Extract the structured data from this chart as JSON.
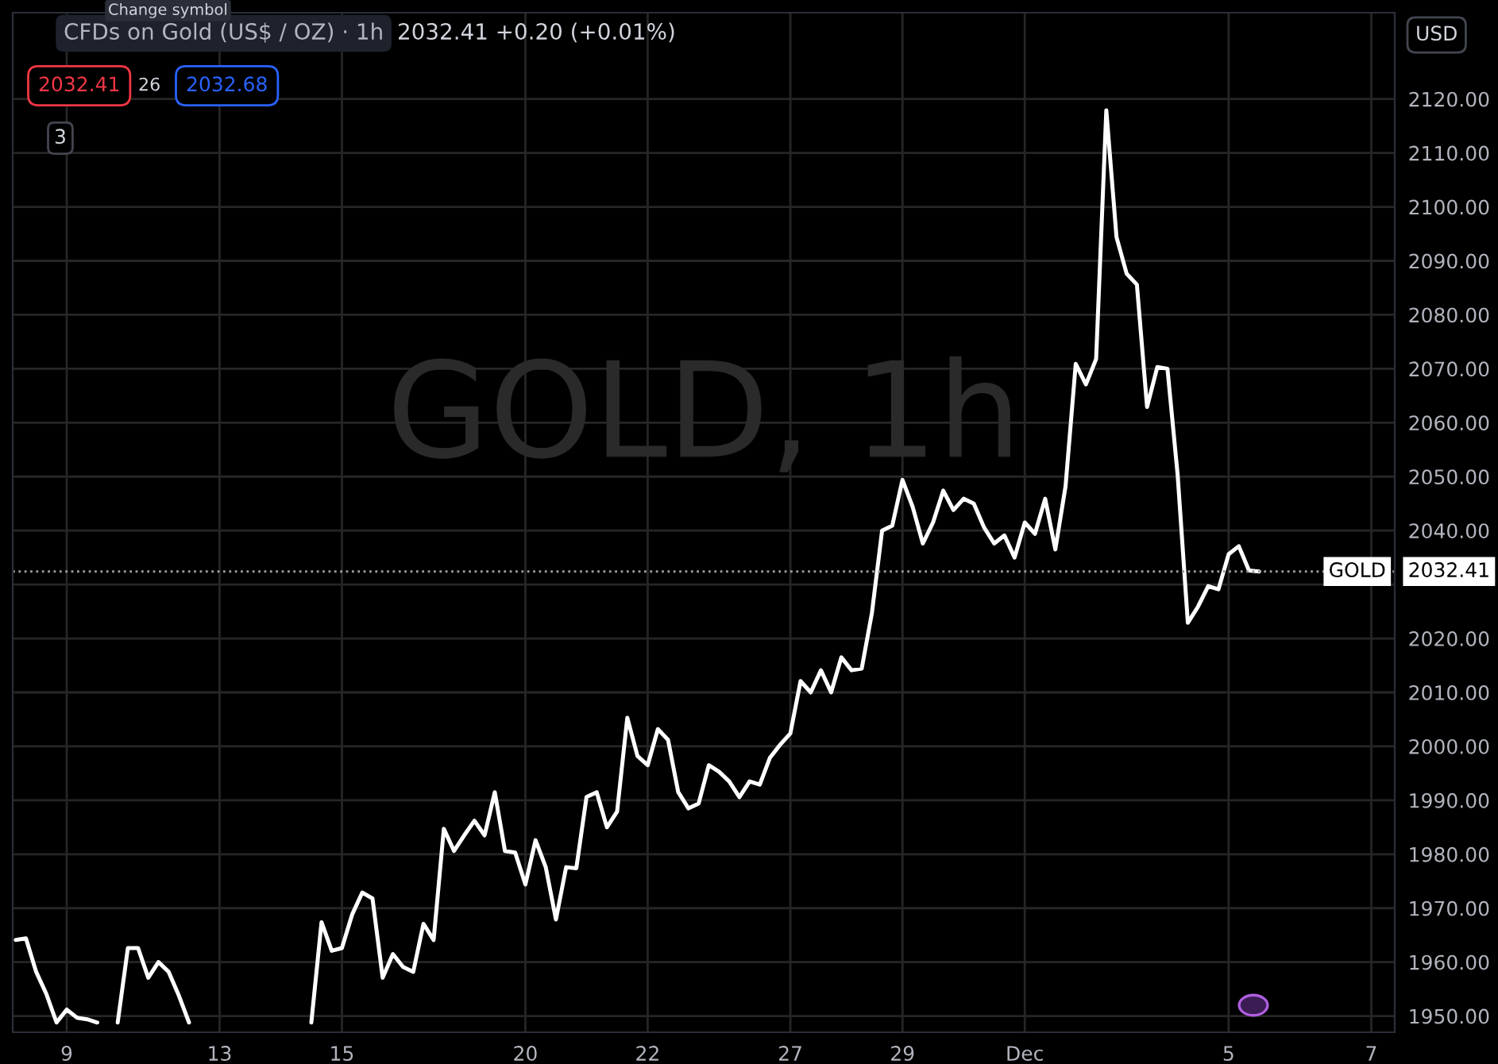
{
  "chart_data": {
    "type": "line",
    "title": "CFDs on Gold (US$ / OZ) · 1h",
    "annotations": [
      "Change symbol",
      "2032.41 +0.20 (+0.01%)",
      "2032.41",
      "26",
      "2032.68",
      "3",
      "USD",
      "GOLD, 1h"
    ],
    "categories": [
      null,
      null,
      null,
      null,
      null,
      "9",
      null,
      null,
      null,
      null,
      null,
      null,
      null,
      null,
      null,
      null,
      null,
      null,
      null,
      null,
      "13",
      null,
      null,
      null,
      null,
      null,
      null,
      null,
      null,
      null,
      null,
      null,
      "15",
      null,
      null,
      null,
      null,
      null,
      null,
      null,
      null,
      null,
      null,
      null,
      null,
      null,
      null,
      null,
      null,
      null,
      "20",
      null,
      null,
      null,
      null,
      null,
      null,
      null,
      null,
      null,
      null,
      null,
      "22",
      null,
      null,
      null,
      null,
      null,
      null,
      null,
      null,
      null,
      null,
      null,
      null,
      null,
      "27",
      null,
      null,
      null,
      null,
      null,
      null,
      null,
      null,
      null,
      null,
      "29",
      null,
      null,
      null,
      null,
      null,
      null,
      null,
      null,
      null,
      null,
      null,
      "Dec",
      null,
      null,
      null,
      null,
      null,
      null,
      null,
      null,
      null,
      null,
      null,
      null,
      null,
      null,
      null,
      null,
      null,
      null,
      null,
      "5",
      null,
      null,
      null,
      null,
      null,
      null,
      null,
      null,
      null,
      null,
      null,
      null,
      null,
      "7",
      null,
      null
    ],
    "series": [
      {
        "color": "#ffffff",
        "values": [
          1964.1,
          1964.4,
          1958.2,
          1954.1,
          1948.8,
          1951.2,
          1949.7,
          1949.4,
          1948.8,
          null,
          1948.8,
          1962.6,
          1962.6,
          1957.1,
          1960.0,
          1958.2,
          1953.8,
          1948.8,
          null,
          null,
          null,
          null,
          null,
          null,
          null,
          null,
          null,
          null,
          null,
          1948.8,
          1967.4,
          1962.1,
          1962.6,
          1968.8,
          1972.9,
          1971.8,
          1957.1,
          1961.5,
          1959.1,
          1958.2,
          1967.1,
          1964.1,
          1984.7,
          1980.6,
          1983.5,
          1986.2,
          1983.5,
          1991.5,
          1980.6,
          1980.3,
          1974.4,
          1982.6,
          1977.6,
          1967.9,
          1977.6,
          1977.4,
          1990.6,
          1991.5,
          1985.0,
          1987.9,
          2005.3,
          1998.2,
          1996.5,
          2003.2,
          2001.2,
          1991.5,
          1988.5,
          1989.4,
          1996.5,
          1995.3,
          1993.5,
          1990.6,
          1993.5,
          1992.9,
          1997.9,
          2000.3,
          2002.4,
          2012.1,
          2010.0,
          2014.1,
          2010.0,
          2016.5,
          2014.1,
          2014.4,
          2024.7,
          2040.0,
          2040.9,
          2049.4,
          2044.4,
          2037.6,
          2041.5,
          2047.4,
          2043.8,
          2045.9,
          2045.0,
          2040.6,
          2037.6,
          2039.1,
          2035.0,
          2041.5,
          2039.4,
          2045.9,
          2036.5,
          2048.2,
          2070.9,
          2067.1,
          2071.8,
          2117.9,
          2094.4,
          2087.6,
          2085.6,
          2062.9,
          2070.3,
          2070.0,
          2050.3,
          2022.9,
          2025.9,
          2029.7,
          2029.1,
          2035.6,
          2037.1,
          2032.6,
          2032.4,
          null,
          null,
          null,
          null,
          null,
          null,
          null,
          null,
          null,
          null,
          null,
          null,
          null
        ]
      }
    ],
    "ylim": [
      1947,
      2136
    ],
    "yticks": [
      {
        "value": 1950,
        "label": "1950.00"
      },
      {
        "value": 1960,
        "label": "1960.00"
      },
      {
        "value": 1970,
        "label": "1970.00"
      },
      {
        "value": 1980,
        "label": "1980.00"
      },
      {
        "value": 1990,
        "label": "1990.00"
      },
      {
        "value": 2000,
        "label": "2000.00"
      },
      {
        "value": 2010,
        "label": "2010.00"
      },
      {
        "value": 2020,
        "label": "2020.00"
      },
      {
        "value": 2030,
        "label": null
      },
      {
        "value": 2040,
        "label": "2040.00"
      },
      {
        "value": 2050,
        "label": "2050.00"
      },
      {
        "value": 2060,
        "label": "2060.00"
      },
      {
        "value": 2070,
        "label": "2070.00"
      },
      {
        "value": 2080,
        "label": "2080.00"
      },
      {
        "value": 2090,
        "label": "2090.00"
      },
      {
        "value": 2100,
        "label": "2100.00"
      },
      {
        "value": 2110,
        "label": "2110.00"
      },
      {
        "value": 2120,
        "label": "2120.00"
      }
    ],
    "ref_lines": [
      {
        "axis": "y",
        "value": 2032.41,
        "label": "GOLD",
        "color": "#9a9a9a",
        "line_style": "dotted"
      }
    ],
    "grid": true,
    "legend": false,
    "line_style": "solid",
    "marker": "none"
  }
}
